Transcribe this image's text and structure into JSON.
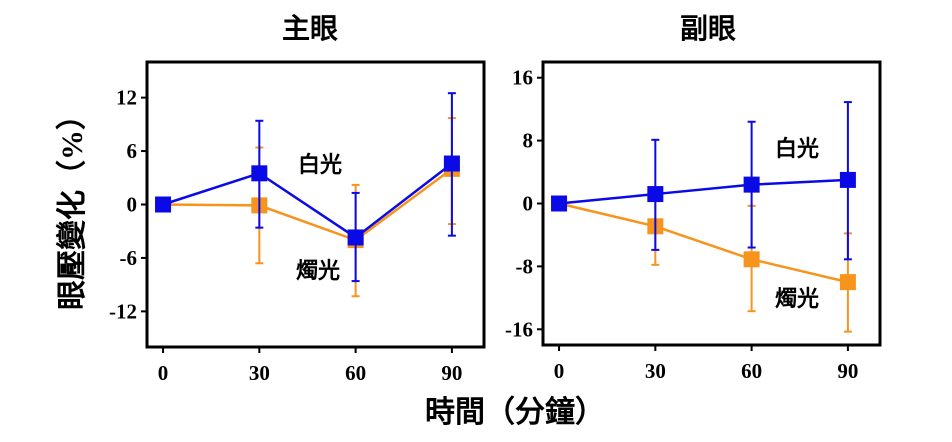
{
  "chart_data": [
    {
      "type": "line",
      "title": "主眼",
      "x": [
        0,
        30,
        60,
        90
      ],
      "xticks": [
        "0",
        "30",
        "60",
        "90"
      ],
      "yticks": [
        "12",
        "6",
        "0",
        "-6",
        "-12"
      ],
      "ytick_values": [
        12,
        6,
        0,
        -6,
        -12
      ],
      "xlim": [
        -5,
        100
      ],
      "ylim": [
        -16,
        16
      ],
      "series": [
        {
          "name": "白光",
          "color": "#0a0ae6",
          "values": [
            0,
            3.5,
            -3.7,
            4.6
          ],
          "err_low": [
            0,
            -2.6,
            -8.6,
            -3.5
          ],
          "err_high": [
            0,
            9.4,
            1.3,
            12.5
          ]
        },
        {
          "name": "燭光",
          "color": "#f7941d",
          "values": [
            0,
            -0.1,
            -4.0,
            4.0
          ],
          "err_low": [
            0,
            -6.6,
            -10.3,
            -2.2
          ],
          "err_high": [
            0,
            6.4,
            2.2,
            9.7
          ]
        }
      ]
    },
    {
      "type": "line",
      "title": "副眼",
      "x": [
        0,
        30,
        60,
        90
      ],
      "xticks": [
        "0",
        "30",
        "60",
        "90"
      ],
      "yticks": [
        "16",
        "8",
        "0",
        "-8",
        "-16"
      ],
      "ytick_values": [
        16,
        8,
        0,
        -8,
        -16
      ],
      "xlim": [
        -5,
        100
      ],
      "ylim": [
        -18,
        18
      ],
      "series": [
        {
          "name": "白光",
          "color": "#0a0ae6",
          "values": [
            0,
            1.2,
            2.4,
            3.0
          ],
          "err_low": [
            0,
            -5.9,
            -5.6,
            -7.1
          ],
          "err_high": [
            0,
            8.1,
            10.4,
            12.9
          ]
        },
        {
          "name": "燭光",
          "color": "#f7941d",
          "values": [
            0,
            -2.9,
            -7.1,
            -10.0
          ],
          "err_low": [
            0,
            -7.8,
            -13.7,
            -16.3
          ],
          "err_high": [
            0,
            1.9,
            -0.3,
            -3.8
          ]
        }
      ]
    }
  ],
  "ylabel": "眼壓變化（%）",
  "xlabel": "時間（分鐘）"
}
